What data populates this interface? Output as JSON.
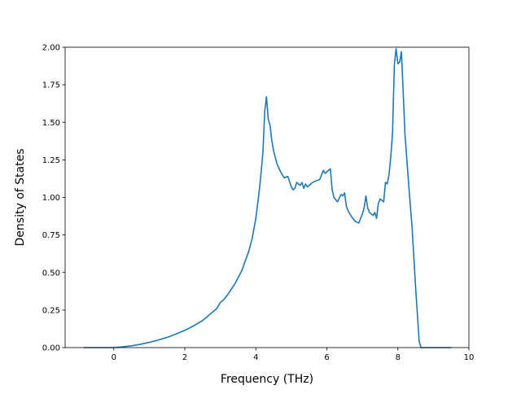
{
  "chart_data": {
    "type": "line",
    "title": "",
    "xlabel": "Frequency (THz)",
    "ylabel": "Density of States",
    "xlim": [
      -1.37,
      10.0
    ],
    "ylim": [
      0.0,
      2.0
    ],
    "xticks": [
      0,
      2,
      4,
      6,
      8,
      10
    ],
    "xtick_labels": [
      "0",
      "2",
      "4",
      "6",
      "8",
      "10"
    ],
    "yticks": [
      0.0,
      0.25,
      0.5,
      0.75,
      1.0,
      1.25,
      1.5,
      1.75,
      2.0
    ],
    "ytick_labels": [
      "0.00",
      "0.25",
      "0.50",
      "0.75",
      "1.00",
      "1.25",
      "1.50",
      "1.75",
      "2.00"
    ],
    "grid": false,
    "legend": false,
    "line_color": "#1f77b4",
    "series": [
      {
        "x": [
          -0.85,
          -0.5,
          0.0,
          0.25,
          0.5,
          0.75,
          1.0,
          1.25,
          1.5,
          1.75,
          2.0,
          2.25,
          2.5,
          2.75,
          2.9,
          3.0,
          3.1,
          3.2,
          3.4,
          3.6,
          3.8,
          3.9,
          4.0,
          4.1,
          4.15,
          4.2,
          4.25,
          4.3,
          4.35,
          4.4,
          4.45,
          4.5,
          4.6,
          4.7,
          4.8,
          4.9,
          5.0,
          5.05,
          5.1,
          5.15,
          5.2,
          5.25,
          5.3,
          5.35,
          5.4,
          5.45,
          5.5,
          5.55,
          5.6,
          5.7,
          5.8,
          5.9,
          5.95,
          6.0,
          6.05,
          6.1,
          6.15,
          6.2,
          6.3,
          6.4,
          6.45,
          6.5,
          6.55,
          6.6,
          6.7,
          6.8,
          6.9,
          7.0,
          7.05,
          7.1,
          7.15,
          7.2,
          7.3,
          7.35,
          7.4,
          7.45,
          7.5,
          7.55,
          7.6,
          7.65,
          7.7,
          7.75,
          7.8,
          7.85,
          7.9,
          7.95,
          8.0,
          8.05,
          8.1,
          8.15,
          8.2,
          8.3,
          8.4,
          8.5,
          8.6,
          8.65,
          8.7,
          9.0,
          9.5
        ],
        "y": [
          0.0,
          0.0,
          0.0,
          0.005,
          0.012,
          0.022,
          0.035,
          0.05,
          0.068,
          0.09,
          0.115,
          0.145,
          0.18,
          0.23,
          0.26,
          0.3,
          0.32,
          0.35,
          0.42,
          0.51,
          0.64,
          0.73,
          0.86,
          1.05,
          1.17,
          1.3,
          1.57,
          1.67,
          1.52,
          1.48,
          1.38,
          1.31,
          1.22,
          1.17,
          1.13,
          1.14,
          1.07,
          1.05,
          1.06,
          1.1,
          1.09,
          1.08,
          1.1,
          1.06,
          1.09,
          1.07,
          1.08,
          1.09,
          1.1,
          1.11,
          1.12,
          1.18,
          1.16,
          1.17,
          1.18,
          1.19,
          1.05,
          1.0,
          0.97,
          1.02,
          1.01,
          1.03,
          0.94,
          0.91,
          0.87,
          0.84,
          0.83,
          0.89,
          0.93,
          1.01,
          0.93,
          0.9,
          0.88,
          0.9,
          0.86,
          0.96,
          0.99,
          0.98,
          0.97,
          1.1,
          1.09,
          1.15,
          1.27,
          1.43,
          1.88,
          1.99,
          1.89,
          1.9,
          1.97,
          1.7,
          1.42,
          1.1,
          0.8,
          0.4,
          0.04,
          0.0,
          0.0,
          0.0,
          0.0
        ]
      }
    ]
  }
}
